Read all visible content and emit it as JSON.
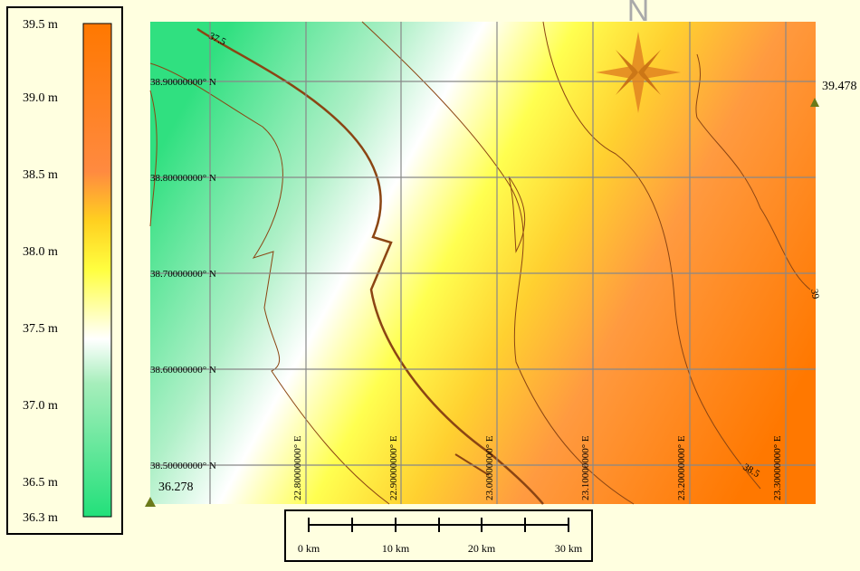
{
  "legend": {
    "labels": [
      "39.5 m",
      "39.0 m",
      "38.5 m",
      "38.0 m",
      "37.5 m",
      "37.0 m",
      "36.5 m",
      "36.3 m"
    ]
  },
  "map": {
    "latitude_labels": [
      "38.90000000° N",
      "38.80000000° N",
      "38.70000000° N",
      "38.60000000° N",
      "38.50000000° N"
    ],
    "longitude_labels": [
      "22.80000000° E",
      "22.90000000° E",
      "23.00000000° E",
      "23.10000000° E",
      "23.20000000° E",
      "23.30000000° E"
    ],
    "contour_labels": [
      "37.5",
      "38.5",
      "39"
    ],
    "point_labels": [
      "39.478",
      "36.278"
    ],
    "compass": "N"
  },
  "scale_bar": {
    "labels": [
      "0 km",
      "10 km",
      "20 km",
      "30 km"
    ]
  }
}
